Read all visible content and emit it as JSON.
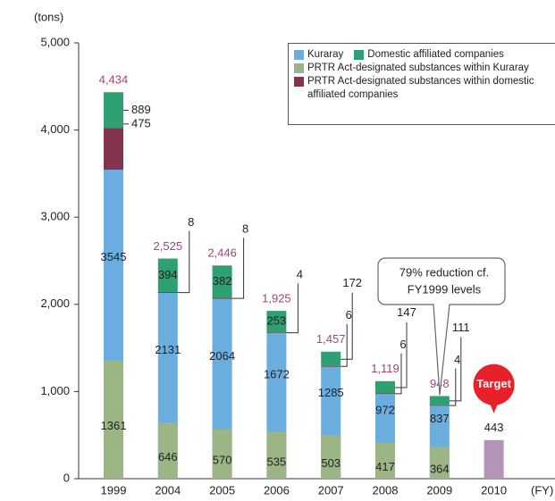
{
  "chart_data": {
    "type": "bar",
    "y_label": "(tons)",
    "x_label": "(FY)",
    "categories": [
      "1999",
      "2004",
      "2005",
      "2006",
      "2007",
      "2008",
      "2009",
      "2010"
    ],
    "series": [
      {
        "name": "Kuraray",
        "color": "#6aaee0",
        "values": [
          3545,
          2131,
          2064,
          1672,
          1285,
          972,
          837,
          null
        ]
      },
      {
        "name": "Domestic affiliated companies",
        "color": "#2ea072",
        "values": [
          889,
          394,
          382,
          253,
          172,
          147,
          111,
          null
        ]
      },
      {
        "name": "PRTR Act-designated substances within Kuraray",
        "color": "#9cb584",
        "values": [
          1361,
          646,
          570,
          535,
          503,
          417,
          364,
          null
        ]
      },
      {
        "name": "PRTR Act-designated substances within domestic affiliated companies",
        "color": "#84344f",
        "values": [
          475,
          8,
          8,
          4,
          6,
          6,
          4,
          null
        ]
      }
    ],
    "totals": {
      "color": "#a0457a",
      "values": [
        4434,
        2525,
        2446,
        1925,
        1457,
        1119,
        948,
        443
      ],
      "value_labels": [
        "4,434",
        "2,525",
        "2,446",
        "1,925",
        "1,457",
        "1,119",
        "948",
        "443"
      ]
    },
    "target": {
      "label": "Target",
      "color": "#b393b6",
      "badge_color": "#e8202a"
    },
    "annotation": [
      "79% reduction cf.",
      "FY1999 levels"
    ],
    "ylim": [
      0,
      5000
    ],
    "yticks": [
      0,
      {
        "value": 1000,
        "label": "1,000"
      },
      {
        "value": 2000,
        "label": "2,000"
      },
      {
        "value": 3000,
        "label": "3,000"
      },
      {
        "value": 4000,
        "label": "4,000"
      },
      {
        "value": 5000,
        "label": "5,000"
      }
    ],
    "grid": false
  }
}
